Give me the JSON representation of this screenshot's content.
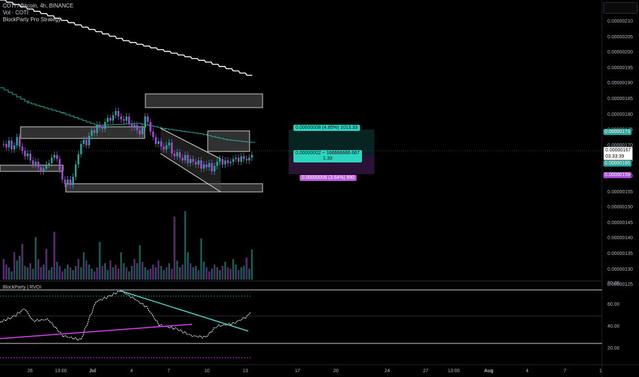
{
  "legend": {
    "symbol_line": "COTI / Bitcoin, 4h, BINANCE",
    "volume_line": "Vol · COTI",
    "strategy_line": "BlockParty Pro Strategy"
  },
  "indicator_pane": {
    "label": "BlockParty | RVOI"
  },
  "price_axis": {
    "labels": [
      "0.00000210",
      "0.00000205",
      "0.00000200",
      "0.00000195",
      "0.00000190",
      "0.00000185",
      "0.00000180",
      "0.00000175",
      "0.00000170",
      "0.00000165",
      "0.00000160",
      "0.00000155",
      "0.00000150",
      "0.00000145",
      "0.00000140",
      "0.00000135",
      "0.00000130",
      "0.00000125"
    ]
  },
  "indicator_axis": {
    "labels": [
      "80.00",
      "60.00",
      "40.00",
      "20.00"
    ]
  },
  "price_badges": {
    "upper_teal": "0.00000173",
    "current": "0.00000167",
    "countdown": "03:33:39",
    "lower_teal": "0.00000165",
    "purple": "0.00000159"
  },
  "trade_box": {
    "target_label": "0.00000008 (4.85%) 1013.33",
    "entry_label_line1": "0.00000002 ~ 166666666.667",
    "entry_label_line2": "1.33",
    "stop_label": "0.00000006 (3.64%) 990"
  },
  "time_axis": {
    "labels": [
      "26",
      "13:00",
      "Jul",
      "4",
      "7",
      "10",
      "13",
      "17",
      "20",
      "24",
      "27",
      "13:00",
      "Aug",
      "4",
      "7",
      "1"
    ]
  },
  "colors": {
    "teal": "#26a69a",
    "purple": "#a64ad6",
    "white": "#ffffff",
    "magenta": "#e040fb",
    "cyan": "#4dd0c4",
    "box_fill": "#5a5a5a"
  }
}
